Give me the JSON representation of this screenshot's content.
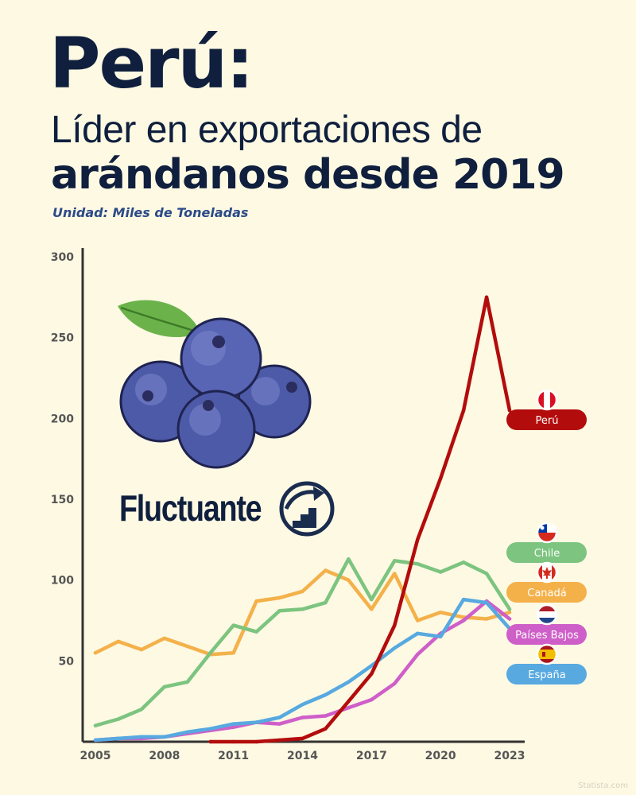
{
  "title": {
    "main": "Perú:",
    "line2": "Líder en exportaciones de",
    "line3": "arándanos desde 2019",
    "unit": "Unidad: Miles de Toneladas"
  },
  "badge": {
    "label": "Fluctuante"
  },
  "watermark": "Statista.com",
  "colors": {
    "background": "#fdf9e3",
    "title": "#0f1f3d",
    "unit": "#2b4a88",
    "axis": "#333333",
    "peru": "#b30c0c",
    "chile": "#7cc47f",
    "canada": "#f4b14a",
    "paises_bajos": "#cf5fc8",
    "espana": "#57a9e0"
  },
  "chart_data": {
    "type": "line",
    "title": "Perú: Líder en exportaciones de arándanos desde 2019",
    "ylabel": "Miles de Toneladas",
    "xlabel": "",
    "xlim": [
      2005,
      2023
    ],
    "ylim": [
      0,
      300
    ],
    "x_ticks": [
      "2005",
      "2008",
      "2011",
      "2014",
      "2017",
      "2020",
      "2023"
    ],
    "y_ticks": [
      "50",
      "100",
      "150",
      "200",
      "250",
      "300"
    ],
    "series": [
      {
        "name": "Perú",
        "key": "peru",
        "x": [
          2010,
          2011,
          2012,
          2013,
          2014,
          2015,
          2016,
          2017,
          2018,
          2019,
          2020,
          2021,
          2022,
          2023
        ],
        "values": [
          0,
          0,
          0,
          1,
          2,
          8,
          25,
          42,
          72,
          125,
          163,
          205,
          275,
          205
        ]
      },
      {
        "name": "Chile",
        "key": "chile",
        "x": [
          2005,
          2006,
          2007,
          2008,
          2009,
          2010,
          2011,
          2012,
          2013,
          2014,
          2015,
          2016,
          2017,
          2018,
          2019,
          2020,
          2021,
          2022,
          2023
        ],
        "values": [
          10,
          14,
          20,
          34,
          37,
          55,
          72,
          68,
          81,
          82,
          86,
          113,
          88,
          112,
          110,
          105,
          111,
          104,
          82
        ]
      },
      {
        "name": "Canadá",
        "key": "canada",
        "x": [
          2005,
          2006,
          2007,
          2008,
          2009,
          2010,
          2011,
          2012,
          2013,
          2014,
          2015,
          2016,
          2017,
          2018,
          2019,
          2020,
          2021,
          2022,
          2023
        ],
        "values": [
          55,
          62,
          57,
          64,
          59,
          54,
          55,
          87,
          89,
          93,
          106,
          100,
          82,
          104,
          75,
          80,
          77,
          76,
          80
        ]
      },
      {
        "name": "Países Bajos",
        "key": "paises_bajos",
        "x": [
          2005,
          2006,
          2007,
          2008,
          2009,
          2010,
          2011,
          2012,
          2013,
          2014,
          2015,
          2016,
          2017,
          2018,
          2019,
          2020,
          2021,
          2022,
          2023
        ],
        "values": [
          1,
          2,
          2,
          3,
          5,
          7,
          9,
          12,
          11,
          15,
          16,
          21,
          26,
          36,
          54,
          67,
          75,
          87,
          76
        ]
      },
      {
        "name": "España",
        "key": "espana",
        "x": [
          2005,
          2006,
          2007,
          2008,
          2009,
          2010,
          2011,
          2012,
          2013,
          2014,
          2015,
          2016,
          2017,
          2018,
          2019,
          2020,
          2021,
          2022,
          2023
        ],
        "values": [
          1,
          2,
          3,
          3,
          6,
          8,
          11,
          12,
          15,
          23,
          29,
          37,
          47,
          58,
          67,
          65,
          88,
          86,
          70
        ]
      }
    ],
    "legend": [
      {
        "label": "Perú",
        "key": "peru",
        "flag": "peru"
      },
      {
        "label": "Chile",
        "key": "chile",
        "flag": "chile"
      },
      {
        "label": "Canadá",
        "key": "canada",
        "flag": "canada"
      },
      {
        "label": "Países Bajos",
        "key": "paises_bajos",
        "flag": "netherlands"
      },
      {
        "label": "España",
        "key": "espana",
        "flag": "spain"
      }
    ]
  }
}
